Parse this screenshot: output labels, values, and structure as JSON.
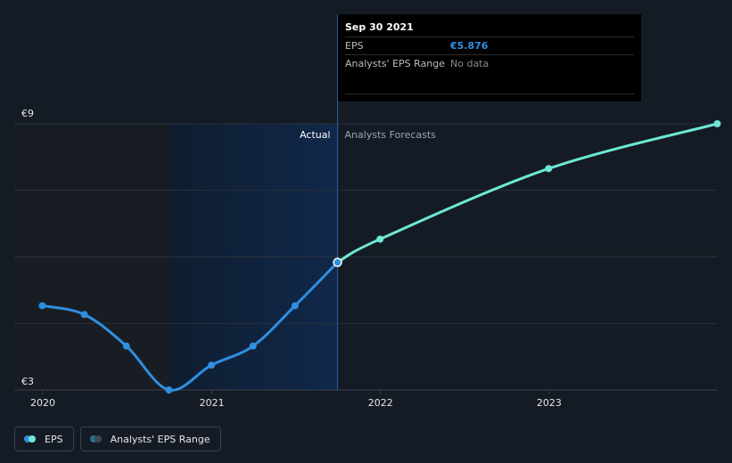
{
  "tooltip": {
    "date": "Sep 30 2021",
    "eps_label": "EPS",
    "eps_value": "€5.876",
    "range_label": "Analysts' EPS Range",
    "range_value": "No data"
  },
  "regions": {
    "actual": "Actual",
    "forecast": "Analysts Forecasts"
  },
  "legend": {
    "eps": "EPS",
    "range": "Analysts' EPS Range"
  },
  "colors": {
    "actual_line": "#2f8fe0",
    "forecast_line": "#6ee7d6",
    "range_dot_a": "#2a6f8f",
    "range_dot_b": "#3a4a5a"
  },
  "chart_data": {
    "type": "line",
    "ylim": [
      3,
      9
    ],
    "y_tick_labels": [
      "€3",
      "€9"
    ],
    "x_tick_labels": [
      "2020",
      "2021",
      "2022",
      "2023"
    ],
    "series": [
      {
        "name": "EPS",
        "values": [
          {
            "x": "2019-12-31",
            "y": 4.9
          },
          {
            "x": "2020-03-31",
            "y": 4.7
          },
          {
            "x": "2020-06-30",
            "y": 3.99
          },
          {
            "x": "2020-09-30",
            "y": 3.0
          },
          {
            "x": "2020-12-31",
            "y": 3.56
          },
          {
            "x": "2021-03-31",
            "y": 3.99
          },
          {
            "x": "2021-06-30",
            "y": 4.9
          },
          {
            "x": "2021-09-30",
            "y": 5.876
          }
        ]
      },
      {
        "name": "Analysts Forecasts",
        "values": [
          {
            "x": "2021-09-30",
            "y": 5.876
          },
          {
            "x": "2021-12-31",
            "y": 6.4
          },
          {
            "x": "2022-12-31",
            "y": 7.99
          },
          {
            "x": "2023-12-31",
            "y": 9.0
          }
        ]
      }
    ]
  }
}
